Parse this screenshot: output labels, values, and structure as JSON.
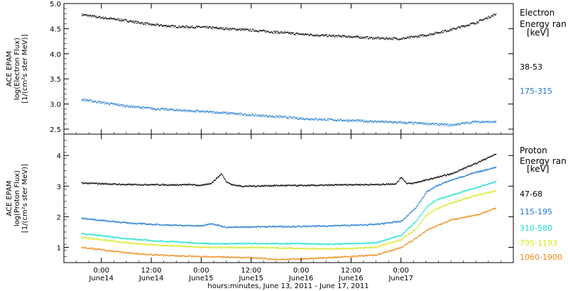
{
  "chart_data": [
    {
      "type": "scatter",
      "panel": "electron",
      "ylabel": [
        "ACE EPAM",
        "log(Electron Flux)",
        "[1/(cm²s ster MeV)]"
      ],
      "ylim": [
        2.4,
        5.0
      ],
      "yticks": [
        "2.5",
        "3.0",
        "3.5",
        "4.0",
        "4.5",
        "5.0"
      ],
      "ytick_values": [
        2.5,
        3.0,
        3.5,
        4.0,
        4.5,
        5.0
      ],
      "legend_title": [
        "Electron",
        "Energy ran",
        "[keV]"
      ],
      "series": [
        {
          "name": "38-53",
          "color": "#000000",
          "x": [
            -0.2,
            0.0,
            0.25,
            0.5,
            0.75,
            1.0,
            1.25,
            1.5,
            1.75,
            2.0,
            2.25,
            2.5,
            2.75,
            3.0,
            3.25,
            3.5,
            3.75,
            3.95
          ],
          "y": [
            4.78,
            4.72,
            4.66,
            4.58,
            4.54,
            4.53,
            4.5,
            4.47,
            4.43,
            4.39,
            4.36,
            4.34,
            4.31,
            4.3,
            4.37,
            4.48,
            4.62,
            4.79
          ]
        },
        {
          "name": "175-315",
          "color": "#1f78d1",
          "x": [
            -0.2,
            0.0,
            0.25,
            0.5,
            0.75,
            1.0,
            1.25,
            1.5,
            1.75,
            2.0,
            2.25,
            2.5,
            2.75,
            3.0,
            3.25,
            3.5,
            3.75,
            3.95
          ],
          "y": [
            3.09,
            3.03,
            2.96,
            2.91,
            2.88,
            2.85,
            2.82,
            2.78,
            2.75,
            2.71,
            2.69,
            2.67,
            2.65,
            2.63,
            2.61,
            2.58,
            2.65,
            2.64
          ]
        }
      ]
    },
    {
      "type": "scatter",
      "panel": "proton",
      "ylabel": [
        "ACE EPAM",
        "log(Proton Flux)",
        "[1/(cm²s ster MeV)]"
      ],
      "ylim": [
        0.5,
        4.7
      ],
      "yticks": [
        "1",
        "2",
        "3",
        "4"
      ],
      "ytick_values": [
        1,
        2,
        3,
        4
      ],
      "legend_title": [
        "Proton",
        "Energy ran",
        "[keV]"
      ],
      "series": [
        {
          "name": "47-68",
          "color": "#000000",
          "x": [
            -0.2,
            0.0,
            0.25,
            0.5,
            0.75,
            0.9,
            1.0,
            1.1,
            1.2,
            1.25,
            1.3,
            1.4,
            1.5,
            1.75,
            2.0,
            2.25,
            2.5,
            2.75,
            2.95,
            3.0,
            3.05,
            3.1,
            3.25,
            3.5,
            3.75,
            3.95
          ],
          "y": [
            3.1,
            3.08,
            3.05,
            3.05,
            3.04,
            3.05,
            3.02,
            3.1,
            3.4,
            3.15,
            3.05,
            3.0,
            3.0,
            3.02,
            3.02,
            3.03,
            3.05,
            3.05,
            3.08,
            3.3,
            3.1,
            3.08,
            3.2,
            3.4,
            3.75,
            4.05
          ]
        },
        {
          "name": "115-195",
          "color": "#1f78d1",
          "x": [
            -0.2,
            0.0,
            0.25,
            0.5,
            0.75,
            1.0,
            1.1,
            1.25,
            1.5,
            1.75,
            2.0,
            2.25,
            2.5,
            2.75,
            3.0,
            3.15,
            3.25,
            3.35,
            3.5,
            3.75,
            3.95
          ],
          "y": [
            1.95,
            1.88,
            1.8,
            1.75,
            1.72,
            1.7,
            1.78,
            1.65,
            1.67,
            1.68,
            1.68,
            1.7,
            1.72,
            1.75,
            1.85,
            2.3,
            2.8,
            3.0,
            3.2,
            3.45,
            3.62
          ]
        },
        {
          "name": "310-580",
          "color": "#18e0cc",
          "x": [
            -0.2,
            0.0,
            0.25,
            0.5,
            0.75,
            1.0,
            1.25,
            1.5,
            1.75,
            2.0,
            2.25,
            2.5,
            2.75,
            3.0,
            3.15,
            3.25,
            3.35,
            3.5,
            3.75,
            3.95
          ],
          "y": [
            1.45,
            1.38,
            1.28,
            1.22,
            1.18,
            1.12,
            1.12,
            1.13,
            1.12,
            1.12,
            1.1,
            1.12,
            1.15,
            1.4,
            1.85,
            2.3,
            2.55,
            2.7,
            2.95,
            3.15
          ]
        },
        {
          "name": "795-1193",
          "color": "#d8e81c",
          "x": [
            -0.2,
            0.0,
            0.25,
            0.5,
            0.75,
            1.0,
            1.25,
            1.5,
            1.75,
            2.0,
            2.25,
            2.5,
            2.75,
            3.0,
            3.15,
            3.25,
            3.35,
            3.5,
            3.75,
            3.95
          ],
          "y": [
            1.32,
            1.25,
            1.15,
            1.08,
            1.05,
            1.0,
            0.99,
            1.0,
            0.98,
            0.96,
            0.95,
            0.96,
            1.0,
            1.25,
            1.6,
            2.05,
            2.25,
            2.45,
            2.7,
            2.85
          ]
        },
        {
          "name": "1060-1900",
          "color": "#f08a16",
          "x": [
            -0.2,
            0.0,
            0.25,
            0.5,
            0.75,
            1.0,
            1.25,
            1.5,
            1.75,
            2.0,
            2.25,
            2.5,
            2.75,
            3.0,
            3.15,
            3.25,
            3.35,
            3.5,
            3.75,
            3.95
          ],
          "y": [
            1.0,
            0.92,
            0.82,
            0.76,
            0.72,
            0.7,
            0.68,
            0.66,
            0.6,
            0.62,
            0.66,
            0.7,
            0.75,
            1.0,
            1.3,
            1.55,
            1.7,
            1.9,
            2.05,
            2.28
          ]
        }
      ]
    }
  ],
  "xaxis": {
    "title": "hours:minutes, June 13, 2011 - June 17, 2011",
    "xlim": [
      -0.375,
      4.125
    ],
    "ticks": [
      {
        "value": 0.0,
        "time": "0:00",
        "date": "June14"
      },
      {
        "value": 0.5,
        "time": "12:00",
        "date": "June14"
      },
      {
        "value": 1.0,
        "time": "0:00",
        "date": "June15"
      },
      {
        "value": 1.5,
        "time": "12:00",
        "date": "June15"
      },
      {
        "value": 2.0,
        "time": "0:00",
        "date": "June16"
      },
      {
        "value": 2.5,
        "time": "12:00",
        "date": "June16"
      },
      {
        "value": 3.0,
        "time": "0:00",
        "date": "June17"
      }
    ]
  }
}
